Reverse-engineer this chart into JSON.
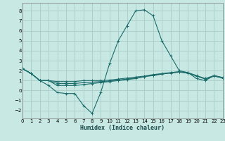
{
  "xlabel": "Humidex (Indice chaleur)",
  "background_color": "#c8e8e4",
  "grid_color": "#a8ccc8",
  "line_color": "#1a6b6a",
  "xlim": [
    0,
    23
  ],
  "ylim": [
    -2.8,
    8.8
  ],
  "yticks": [
    -2,
    -1,
    0,
    1,
    2,
    3,
    4,
    5,
    6,
    7,
    8
  ],
  "xticks": [
    0,
    1,
    2,
    3,
    4,
    5,
    6,
    7,
    8,
    9,
    10,
    11,
    12,
    13,
    14,
    15,
    16,
    17,
    18,
    19,
    20,
    21,
    22,
    23
  ],
  "series": [
    {
      "x": [
        0,
        1,
        2,
        3,
        4,
        5,
        6,
        7,
        8,
        9,
        10,
        11,
        12,
        13,
        14,
        15,
        16,
        17,
        18,
        19,
        20,
        21,
        22,
        23
      ],
      "y": [
        2.2,
        1.7,
        1.0,
        0.5,
        -0.2,
        -0.3,
        -0.3,
        -1.5,
        -2.3,
        -0.15,
        2.7,
        5.0,
        6.5,
        8.0,
        8.1,
        7.5,
        5.0,
        3.5,
        2.0,
        1.8,
        1.2,
        1.0,
        1.5,
        1.3
      ]
    },
    {
      "x": [
        0,
        1,
        2,
        3,
        4,
        5,
        6,
        7,
        8,
        9,
        10,
        11,
        12,
        13,
        14,
        15,
        16,
        17,
        18,
        19,
        20,
        21,
        22,
        23
      ],
      "y": [
        2.2,
        1.7,
        1.0,
        1.0,
        0.5,
        0.5,
        0.5,
        0.6,
        0.7,
        0.8,
        0.9,
        1.0,
        1.1,
        1.2,
        1.4,
        1.5,
        1.65,
        1.75,
        1.85,
        1.75,
        1.45,
        1.15,
        1.45,
        1.25
      ]
    },
    {
      "x": [
        0,
        1,
        2,
        3,
        4,
        5,
        6,
        7,
        8,
        9,
        10,
        11,
        12,
        13,
        14,
        15,
        16,
        17,
        18,
        19,
        20,
        21,
        22,
        23
      ],
      "y": [
        2.2,
        1.7,
        1.0,
        1.0,
        0.7,
        0.7,
        0.7,
        0.8,
        0.85,
        0.9,
        0.95,
        1.05,
        1.15,
        1.25,
        1.4,
        1.55,
        1.67,
        1.77,
        1.87,
        1.77,
        1.47,
        1.17,
        1.47,
        1.27
      ]
    },
    {
      "x": [
        0,
        1,
        2,
        3,
        4,
        5,
        6,
        7,
        8,
        9,
        10,
        11,
        12,
        13,
        14,
        15,
        16,
        17,
        18,
        19,
        20,
        21,
        22,
        23
      ],
      "y": [
        2.2,
        1.7,
        1.0,
        1.0,
        0.9,
        0.9,
        0.9,
        1.0,
        1.0,
        1.0,
        1.05,
        1.15,
        1.25,
        1.35,
        1.45,
        1.6,
        1.7,
        1.8,
        1.9,
        1.8,
        1.5,
        1.2,
        1.5,
        1.3
      ]
    }
  ]
}
